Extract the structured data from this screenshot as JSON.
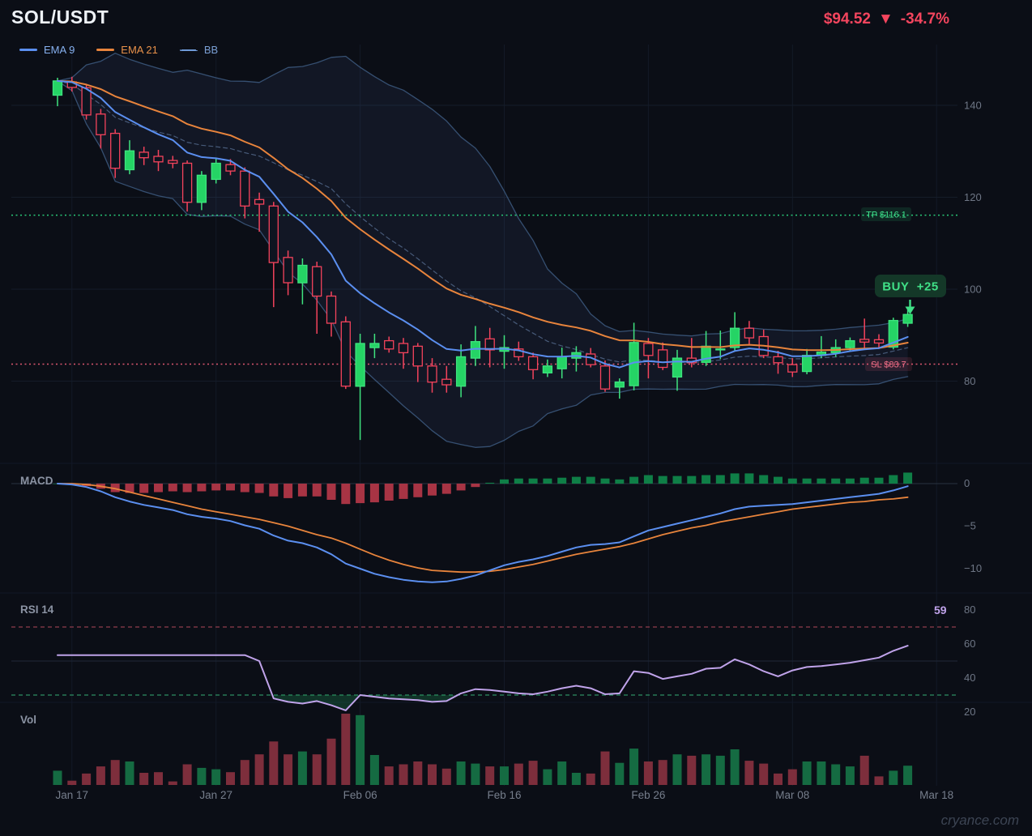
{
  "header": {
    "symbol": "SOL/USDT",
    "price": "$94.52",
    "direction": "▼",
    "change": "-34.7%"
  },
  "legend": [
    {
      "label": "EMA 9",
      "color": "#5b8ff0",
      "text_color": "#86b0ef",
      "style": "solid"
    },
    {
      "label": "EMA 21",
      "color": "#e8843c",
      "text_color": "#e8914a",
      "style": "solid"
    },
    {
      "label": "BB",
      "color": "#6f9ad8",
      "text_color": "#7a9fd4",
      "style": "dashed"
    }
  ],
  "panels": {
    "macd_label": "MACD",
    "rsi_label": "RSI 14",
    "vol_label": "Vol",
    "rsi_value": "59"
  },
  "signals": {
    "tp": {
      "label": "TP $116.1",
      "price": 116.1
    },
    "sl": {
      "label": "SL $83.7",
      "price": 83.7
    },
    "buy": {
      "label": "BUY  +25",
      "value": 25
    }
  },
  "axes": {
    "price_ticks": [
      {
        "v": 140,
        "label": "140"
      },
      {
        "v": 120,
        "label": "120"
      },
      {
        "v": 100,
        "label": "100"
      },
      {
        "v": 80,
        "label": "80"
      }
    ],
    "macd_ticks": [
      {
        "v": 0,
        "label": "0"
      },
      {
        "v": -5,
        "label": "−5"
      },
      {
        "v": -10,
        "label": "−10"
      }
    ],
    "rsi_ticks": [
      {
        "v": 80,
        "label": "80"
      },
      {
        "v": 60,
        "label": "60"
      },
      {
        "v": 40,
        "label": "40"
      },
      {
        "v": 20,
        "label": "20"
      }
    ],
    "date_ticks": [
      {
        "i": 1,
        "label": "Jan 17"
      },
      {
        "i": 11,
        "label": "Jan 27"
      },
      {
        "i": 21,
        "label": "Feb 06"
      },
      {
        "i": 31,
        "label": "Feb 16"
      },
      {
        "i": 41,
        "label": "Feb 26"
      },
      {
        "i": 51,
        "label": "Mar 08"
      },
      {
        "i": 61,
        "label": "Mar 18"
      }
    ]
  },
  "watermark": "cryance.com",
  "colors": {
    "up": "#25d465",
    "up_edge": "#3fe47f",
    "down": "#f4435c",
    "hollow_fill": "#0e1420",
    "ema9": "#5b8ff0",
    "ema21": "#e8843c",
    "bb_line": "#3d5a80",
    "bb_mid": "#5a7196",
    "bb_fill": "rgba(96,144,220,0.08)",
    "tp": "#2edf84",
    "sl": "#f4607a",
    "buy_text": "#40e087",
    "buy_bg": "#143828",
    "hist_pos": "#0f7f47",
    "hist_neg": "#a83444",
    "rsi": "#c0a3ea",
    "rsi_over": "#8f3d4d",
    "rsi_under": "#2e8f63",
    "rsi_fill": "rgba(30,150,90,0.27)",
    "vol_up": "#156b42",
    "vol_down": "#7d2e3c",
    "price_red": "#f4455e",
    "grid": "#151c29",
    "vgrid": "#131a27",
    "zero_line": "#2a3240"
  },
  "chart_data": {
    "type": "candlestick",
    "title": "SOL/USDT daily chart with EMA 9, EMA 21, Bollinger Bands, MACD, RSI 14 and Volume",
    "last_price": 94.52,
    "change_pct": -34.7,
    "take_profit": 116.1,
    "stop_loss": 83.7,
    "price_ylim": [
      63,
      153
    ],
    "indicators": {
      "ema_fast": 9,
      "ema_slow": 21,
      "bb_period": 20,
      "bb_stddev": 2,
      "rsi_period": 14,
      "macd_hist": "derived: macd_line - macd_signal"
    },
    "candles": [
      [
        142.2,
        146.0,
        139.8,
        145.3
      ],
      [
        145.1,
        146.2,
        143.0,
        143.9
      ],
      [
        143.8,
        144.6,
        136.9,
        137.9
      ],
      [
        138.1,
        139.2,
        130.6,
        133.6
      ],
      [
        133.9,
        134.8,
        124.2,
        126.3
      ],
      [
        126.0,
        132.4,
        125.0,
        130.1
      ],
      [
        129.8,
        131.0,
        127.0,
        128.6
      ],
      [
        128.9,
        130.3,
        125.7,
        127.7
      ],
      [
        128.0,
        129.0,
        126.3,
        127.4
      ],
      [
        127.4,
        128.0,
        116.9,
        118.9
      ],
      [
        118.9,
        125.7,
        117.2,
        124.8
      ],
      [
        123.9,
        128.6,
        123.0,
        127.4
      ],
      [
        127.1,
        128.3,
        124.8,
        125.7
      ],
      [
        125.7,
        126.5,
        115.4,
        118.1
      ],
      [
        119.5,
        121.0,
        112.5,
        118.5
      ],
      [
        118.1,
        119.0,
        96.1,
        105.8
      ],
      [
        106.9,
        108.4,
        98.7,
        101.4
      ],
      [
        101.4,
        106.7,
        96.7,
        105.2
      ],
      [
        104.9,
        106.0,
        90.3,
        98.5
      ],
      [
        98.5,
        99.5,
        89.7,
        92.6
      ],
      [
        92.9,
        94.1,
        78.3,
        78.9
      ],
      [
        78.9,
        90.3,
        67.2,
        88.2
      ],
      [
        87.3,
        90.3,
        85.0,
        88.2
      ],
      [
        88.8,
        89.7,
        86.2,
        87.0
      ],
      [
        88.2,
        89.4,
        82.7,
        86.2
      ],
      [
        87.6,
        88.3,
        79.8,
        83.3
      ],
      [
        83.3,
        85.0,
        77.5,
        79.8
      ],
      [
        80.4,
        83.3,
        77.5,
        79.2
      ],
      [
        78.9,
        88.0,
        76.5,
        85.3
      ],
      [
        85.0,
        92.0,
        83.3,
        88.6
      ],
      [
        89.2,
        91.6,
        83.0,
        86.8
      ],
      [
        86.5,
        90.0,
        82.7,
        87.3
      ],
      [
        87.0,
        88.6,
        84.4,
        85.3
      ],
      [
        85.3,
        86.2,
        80.4,
        82.5
      ],
      [
        81.8,
        84.7,
        80.9,
        83.3
      ],
      [
        82.7,
        87.3,
        80.6,
        85.3
      ],
      [
        85.0,
        87.6,
        82.1,
        86.2
      ],
      [
        85.9,
        87.2,
        83.0,
        83.6
      ],
      [
        83.3,
        84.5,
        77.7,
        78.3
      ],
      [
        78.7,
        80.6,
        76.2,
        79.8
      ],
      [
        79.0,
        92.7,
        78.0,
        88.4
      ],
      [
        88.2,
        89.4,
        80.6,
        85.6
      ],
      [
        86.8,
        88.4,
        82.4,
        83.0
      ],
      [
        80.9,
        86.8,
        77.9,
        85.0
      ],
      [
        85.0,
        89.4,
        83.0,
        84.0
      ],
      [
        84.1,
        90.9,
        83.3,
        87.6
      ],
      [
        86.8,
        91.0,
        84.8,
        87.0
      ],
      [
        87.3,
        95.0,
        86.6,
        91.5
      ],
      [
        91.5,
        93.1,
        87.9,
        89.4
      ],
      [
        89.7,
        91.2,
        85.0,
        85.6
      ],
      [
        85.3,
        86.6,
        81.6,
        84.0
      ],
      [
        83.6,
        85.0,
        80.9,
        82.0
      ],
      [
        82.1,
        87.0,
        81.5,
        85.6
      ],
      [
        85.6,
        89.8,
        85.0,
        86.3
      ],
      [
        86.2,
        89.1,
        85.3,
        87.3
      ],
      [
        87.3,
        89.5,
        86.5,
        88.8
      ],
      [
        89.1,
        93.6,
        86.8,
        88.5
      ],
      [
        89.0,
        90.2,
        87.0,
        88.3
      ],
      [
        87.4,
        93.8,
        86.9,
        93.2
      ],
      [
        92.6,
        95.5,
        91.8,
        94.5
      ]
    ],
    "volume": [
      20,
      6,
      16,
      26,
      35,
      33,
      17,
      18,
      5,
      29,
      24,
      22,
      18,
      35,
      43,
      61,
      43,
      47,
      43,
      65,
      100,
      98,
      42,
      26,
      29,
      33,
      29,
      23,
      33,
      30,
      26,
      26,
      30,
      34,
      22,
      33,
      17,
      16,
      47,
      31,
      51,
      33,
      35,
      43,
      41,
      43,
      41,
      50,
      34,
      30,
      16,
      22,
      33,
      33,
      29,
      26,
      41,
      12,
      20,
      27
    ],
    "rsi": [
      53.5,
      53.5,
      53.5,
      53.5,
      53.5,
      53.5,
      53.5,
      53.5,
      53.5,
      53.5,
      53.5,
      53.5,
      53.5,
      53.5,
      50,
      28,
      26,
      25,
      26.5,
      24,
      21,
      30,
      29,
      28,
      27.5,
      27,
      26,
      26.5,
      31,
      33.5,
      33,
      32,
      31,
      30.5,
      32,
      34,
      35.5,
      34,
      30.5,
      31,
      44,
      43,
      39.5,
      41,
      42.5,
      45.5,
      46,
      51,
      48,
      44,
      41,
      44.5,
      46.5,
      47,
      48,
      49,
      50.5,
      52,
      56,
      59
    ],
    "macd_line": [
      0,
      -0.1,
      -0.4,
      -0.9,
      -1.6,
      -2.1,
      -2.5,
      -2.8,
      -3.1,
      -3.6,
      -3.9,
      -4.1,
      -4.4,
      -4.9,
      -5.3,
      -6.1,
      -6.7,
      -7.0,
      -7.5,
      -8.3,
      -9.4,
      -10.0,
      -10.6,
      -11.0,
      -11.3,
      -11.5,
      -11.6,
      -11.5,
      -11.2,
      -10.8,
      -10.2,
      -9.6,
      -9.2,
      -8.9,
      -8.5,
      -8.0,
      -7.5,
      -7.2,
      -7.1,
      -6.9,
      -6.2,
      -5.5,
      -5.1,
      -4.7,
      -4.3,
      -3.9,
      -3.5,
      -3.0,
      -2.7,
      -2.6,
      -2.5,
      -2.4,
      -2.2,
      -2.0,
      -1.8,
      -1.6,
      -1.4,
      -1.2,
      -0.8,
      -0.3
    ],
    "macd_signal": [
      0,
      0,
      -0.1,
      -0.3,
      -0.6,
      -1.0,
      -1.4,
      -1.8,
      -2.2,
      -2.6,
      -3.0,
      -3.3,
      -3.6,
      -3.9,
      -4.2,
      -4.6,
      -5.0,
      -5.5,
      -6.0,
      -6.4,
      -7.0,
      -7.7,
      -8.4,
      -9.0,
      -9.5,
      -9.9,
      -10.2,
      -10.3,
      -10.4,
      -10.4,
      -10.3,
      -10.1,
      -9.8,
      -9.5,
      -9.1,
      -8.7,
      -8.3,
      -8.0,
      -7.7,
      -7.4,
      -7.0,
      -6.5,
      -6.0,
      -5.6,
      -5.2,
      -4.9,
      -4.5,
      -4.2,
      -3.9,
      -3.6,
      -3.3,
      -3.0,
      -2.8,
      -2.6,
      -2.4,
      -2.2,
      -2.1,
      -1.9,
      -1.8,
      -1.6
    ]
  }
}
